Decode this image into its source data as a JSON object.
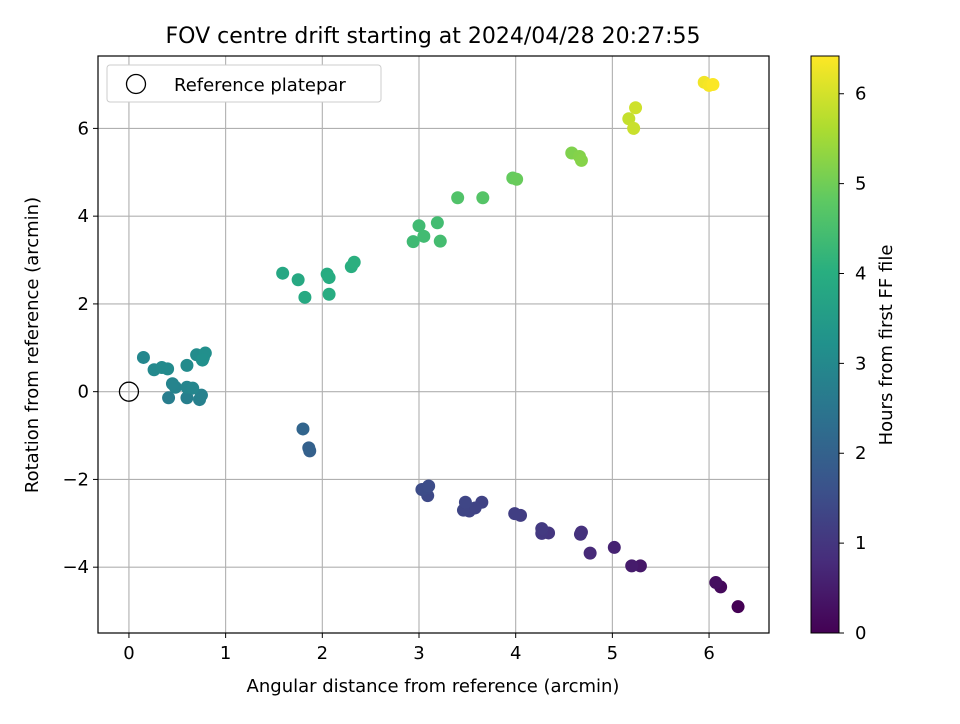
{
  "chart_data": {
    "type": "scatter",
    "title": "FOV centre drift starting at 2024/04/28 20:27:55",
    "xlabel": "Angular distance from reference (arcmin)",
    "ylabel": "Rotation from reference (arcmin)",
    "xlim": [
      -0.32,
      6.62
    ],
    "ylim": [
      -5.5,
      7.65
    ],
    "xticks": [
      0,
      1,
      2,
      3,
      4,
      5,
      6
    ],
    "yticks": [
      -4,
      -2,
      0,
      2,
      4,
      6
    ],
    "grid": true,
    "legend": {
      "position": "top-left",
      "label": "Reference platepar"
    },
    "reference_point": {
      "x": 0,
      "y": 0
    },
    "colorbar": {
      "label": "Hours from first FF file",
      "range": [
        0,
        6.42
      ],
      "ticks": [
        0,
        1,
        2,
        3,
        4,
        5,
        6
      ],
      "colormap": "viridis"
    },
    "points": [
      {
        "x": 6.3,
        "y": -4.9,
        "c": 0.0
      },
      {
        "x": 6.12,
        "y": -4.45,
        "c": 0.15
      },
      {
        "x": 6.07,
        "y": -4.35,
        "c": 0.25
      },
      {
        "x": 5.29,
        "y": -3.97,
        "c": 0.42
      },
      {
        "x": 5.2,
        "y": -3.97,
        "c": 0.5
      },
      {
        "x": 5.02,
        "y": -3.55,
        "c": 0.62
      },
      {
        "x": 4.77,
        "y": -3.68,
        "c": 0.75
      },
      {
        "x": 4.68,
        "y": -3.2,
        "c": 0.88
      },
      {
        "x": 4.67,
        "y": -3.25,
        "c": 0.92
      },
      {
        "x": 4.34,
        "y": -3.22,
        "c": 1.0
      },
      {
        "x": 4.27,
        "y": -3.23,
        "c": 1.05
      },
      {
        "x": 4.27,
        "y": -3.12,
        "c": 1.08
      },
      {
        "x": 4.05,
        "y": -2.82,
        "c": 1.15
      },
      {
        "x": 3.99,
        "y": -2.78,
        "c": 1.18
      },
      {
        "x": 3.65,
        "y": -2.52,
        "c": 1.25
      },
      {
        "x": 3.58,
        "y": -2.65,
        "c": 1.28
      },
      {
        "x": 3.52,
        "y": -2.72,
        "c": 1.3
      },
      {
        "x": 3.46,
        "y": -2.7,
        "c": 1.32
      },
      {
        "x": 3.48,
        "y": -2.52,
        "c": 1.35
      },
      {
        "x": 3.09,
        "y": -2.37,
        "c": 1.42
      },
      {
        "x": 3.08,
        "y": -2.2,
        "c": 1.45
      },
      {
        "x": 3.03,
        "y": -2.23,
        "c": 1.47
      },
      {
        "x": 3.1,
        "y": -2.15,
        "c": 1.5
      },
      {
        "x": 1.87,
        "y": -1.35,
        "c": 1.95
      },
      {
        "x": 1.86,
        "y": -1.28,
        "c": 1.98
      },
      {
        "x": 1.8,
        "y": -0.85,
        "c": 2.08
      },
      {
        "x": 0.41,
        "y": -0.14,
        "c": 2.7
      },
      {
        "x": 0.6,
        "y": -0.14,
        "c": 2.75
      },
      {
        "x": 0.73,
        "y": -0.18,
        "c": 2.78
      },
      {
        "x": 0.75,
        "y": -0.08,
        "c": 2.8
      },
      {
        "x": 0.48,
        "y": 0.1,
        "c": 2.85
      },
      {
        "x": 0.45,
        "y": 0.18,
        "c": 2.88
      },
      {
        "x": 0.6,
        "y": 0.1,
        "c": 2.9
      },
      {
        "x": 0.66,
        "y": 0.08,
        "c": 2.92
      },
      {
        "x": 0.15,
        "y": 0.78,
        "c": 2.96
      },
      {
        "x": 0.26,
        "y": 0.5,
        "c": 3.0
      },
      {
        "x": 0.34,
        "y": 0.55,
        "c": 3.02
      },
      {
        "x": 0.4,
        "y": 0.52,
        "c": 3.04
      },
      {
        "x": 0.6,
        "y": 0.6,
        "c": 3.06
      },
      {
        "x": 0.7,
        "y": 0.84,
        "c": 3.08
      },
      {
        "x": 0.77,
        "y": 0.78,
        "c": 3.12
      },
      {
        "x": 0.79,
        "y": 0.88,
        "c": 3.15
      },
      {
        "x": 0.76,
        "y": 0.72,
        "c": 3.18
      },
      {
        "x": 1.59,
        "y": 2.7,
        "c": 3.82
      },
      {
        "x": 1.75,
        "y": 2.55,
        "c": 3.85
      },
      {
        "x": 1.82,
        "y": 2.15,
        "c": 3.88
      },
      {
        "x": 2.05,
        "y": 2.68,
        "c": 3.92
      },
      {
        "x": 2.07,
        "y": 2.6,
        "c": 3.95
      },
      {
        "x": 2.07,
        "y": 2.22,
        "c": 3.97
      },
      {
        "x": 2.3,
        "y": 2.85,
        "c": 4.02
      },
      {
        "x": 2.33,
        "y": 2.95,
        "c": 4.05
      },
      {
        "x": 2.94,
        "y": 3.42,
        "c": 4.35
      },
      {
        "x": 3.0,
        "y": 3.78,
        "c": 4.38
      },
      {
        "x": 3.05,
        "y": 3.54,
        "c": 4.4
      },
      {
        "x": 3.19,
        "y": 3.85,
        "c": 4.42
      },
      {
        "x": 3.22,
        "y": 3.43,
        "c": 4.44
      },
      {
        "x": 3.4,
        "y": 4.42,
        "c": 4.62
      },
      {
        "x": 3.66,
        "y": 4.42,
        "c": 4.68
      },
      {
        "x": 3.97,
        "y": 4.87,
        "c": 4.88
      },
      {
        "x": 4.01,
        "y": 4.84,
        "c": 4.92
      },
      {
        "x": 4.58,
        "y": 5.44,
        "c": 5.15
      },
      {
        "x": 4.66,
        "y": 5.36,
        "c": 5.2
      },
      {
        "x": 4.68,
        "y": 5.27,
        "c": 5.22
      },
      {
        "x": 5.17,
        "y": 6.22,
        "c": 5.85
      },
      {
        "x": 5.22,
        "y": 6.0,
        "c": 5.9
      },
      {
        "x": 5.24,
        "y": 6.47,
        "c": 5.95
      },
      {
        "x": 5.95,
        "y": 7.05,
        "c": 6.3
      },
      {
        "x": 6.0,
        "y": 6.98,
        "c": 6.35
      },
      {
        "x": 6.04,
        "y": 7.0,
        "c": 6.4
      }
    ]
  }
}
